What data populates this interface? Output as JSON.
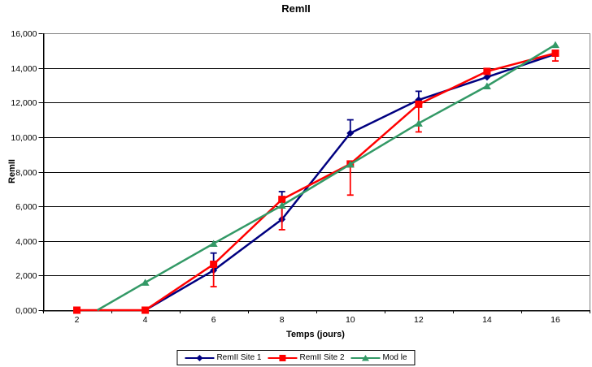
{
  "chart_data": {
    "type": "line",
    "title": "RemII",
    "xlabel": "Temps (jours)",
    "ylabel": "RemII",
    "x_ticks": [
      "2",
      "4",
      "6",
      "8",
      "10",
      "12",
      "14",
      "16"
    ],
    "x_values": [
      2,
      4,
      6,
      8,
      10,
      12,
      14,
      16
    ],
    "y_ticks": [
      "0,000",
      "2,000",
      "4,000",
      "6,000",
      "8,000",
      "10,000",
      "12,000",
      "14,000",
      "16,000"
    ],
    "y_tick_values": [
      0,
      2000,
      4000,
      6000,
      8000,
      10000,
      12000,
      14000,
      16000
    ],
    "ylim": [
      0,
      16000
    ],
    "grid": "horizontal",
    "legend_position": "bottom",
    "colors": {
      "axis": "#000000",
      "gridline": "#000000",
      "plot_border": "#808080",
      "background": "#ffffff"
    },
    "series": [
      {
        "name": "RemII Site 1",
        "color": "#000080",
        "marker": "diamond",
        "points": [
          [
            4,
            0
          ],
          [
            6,
            2300
          ],
          [
            8,
            5250
          ],
          [
            10,
            10230
          ],
          [
            12,
            12150
          ],
          [
            14,
            13470
          ],
          [
            16,
            14800
          ]
        ],
        "error_bars": [
          {
            "x": 6,
            "from": 2300,
            "to": 3300
          },
          {
            "x": 8,
            "from": 5250,
            "to": 6850
          },
          {
            "x": 10,
            "from": 10230,
            "to": 11000
          },
          {
            "x": 12,
            "from": 12150,
            "to": 12650
          }
        ]
      },
      {
        "name": "RemII Site 2",
        "color": "#ff0000",
        "marker": "square",
        "points": [
          [
            2,
            0
          ],
          [
            4,
            0
          ],
          [
            6,
            2650
          ],
          [
            8,
            6400
          ],
          [
            10,
            8450
          ],
          [
            12,
            11900
          ],
          [
            14,
            13800
          ],
          [
            16,
            14850
          ]
        ],
        "error_bars": [
          {
            "x": 6,
            "from": 2650,
            "to": 1360
          },
          {
            "x": 8,
            "from": 6400,
            "to": 4650
          },
          {
            "x": 10,
            "from": 8450,
            "to": 6650
          },
          {
            "x": 12,
            "from": 11900,
            "to": 10300
          },
          {
            "x": 16,
            "from": 14850,
            "to": 14400
          }
        ]
      },
      {
        "name": "Mod le",
        "color": "#339966",
        "marker": "triangle",
        "line_start": [
          2.6,
          0
        ],
        "points": [
          [
            4,
            1600
          ],
          [
            6,
            3850
          ],
          [
            8,
            6050
          ],
          [
            10,
            8430
          ],
          [
            12,
            10800
          ],
          [
            14,
            12950
          ],
          [
            16,
            15340
          ]
        ],
        "error_bars": []
      }
    ]
  }
}
